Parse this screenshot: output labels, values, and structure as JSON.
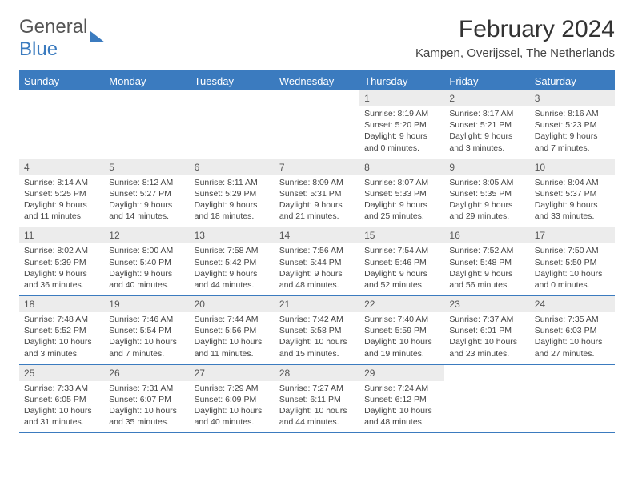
{
  "logo": {
    "word1": "General",
    "word2": "Blue"
  },
  "title": "February 2024",
  "location": "Kampen, Overijssel, The Netherlands",
  "dayHeaders": [
    "Sunday",
    "Monday",
    "Tuesday",
    "Wednesday",
    "Thursday",
    "Friday",
    "Saturday"
  ],
  "colors": {
    "accent": "#3b7bbf",
    "daynum_bg": "#ececec",
    "text": "#333333",
    "subtext": "#444444"
  },
  "typography": {
    "title_fontsize": 30,
    "location_fontsize": 15,
    "header_fontsize": 13,
    "body_fontsize": 10.5
  },
  "weeks": [
    [
      {
        "n": "",
        "sr": "",
        "ss": "",
        "dl": ""
      },
      {
        "n": "",
        "sr": "",
        "ss": "",
        "dl": ""
      },
      {
        "n": "",
        "sr": "",
        "ss": "",
        "dl": ""
      },
      {
        "n": "",
        "sr": "",
        "ss": "",
        "dl": ""
      },
      {
        "n": "1",
        "sr": "Sunrise: 8:19 AM",
        "ss": "Sunset: 5:20 PM",
        "dl": "Daylight: 9 hours and 0 minutes."
      },
      {
        "n": "2",
        "sr": "Sunrise: 8:17 AM",
        "ss": "Sunset: 5:21 PM",
        "dl": "Daylight: 9 hours and 3 minutes."
      },
      {
        "n": "3",
        "sr": "Sunrise: 8:16 AM",
        "ss": "Sunset: 5:23 PM",
        "dl": "Daylight: 9 hours and 7 minutes."
      }
    ],
    [
      {
        "n": "4",
        "sr": "Sunrise: 8:14 AM",
        "ss": "Sunset: 5:25 PM",
        "dl": "Daylight: 9 hours and 11 minutes."
      },
      {
        "n": "5",
        "sr": "Sunrise: 8:12 AM",
        "ss": "Sunset: 5:27 PM",
        "dl": "Daylight: 9 hours and 14 minutes."
      },
      {
        "n": "6",
        "sr": "Sunrise: 8:11 AM",
        "ss": "Sunset: 5:29 PM",
        "dl": "Daylight: 9 hours and 18 minutes."
      },
      {
        "n": "7",
        "sr": "Sunrise: 8:09 AM",
        "ss": "Sunset: 5:31 PM",
        "dl": "Daylight: 9 hours and 21 minutes."
      },
      {
        "n": "8",
        "sr": "Sunrise: 8:07 AM",
        "ss": "Sunset: 5:33 PM",
        "dl": "Daylight: 9 hours and 25 minutes."
      },
      {
        "n": "9",
        "sr": "Sunrise: 8:05 AM",
        "ss": "Sunset: 5:35 PM",
        "dl": "Daylight: 9 hours and 29 minutes."
      },
      {
        "n": "10",
        "sr": "Sunrise: 8:04 AM",
        "ss": "Sunset: 5:37 PM",
        "dl": "Daylight: 9 hours and 33 minutes."
      }
    ],
    [
      {
        "n": "11",
        "sr": "Sunrise: 8:02 AM",
        "ss": "Sunset: 5:39 PM",
        "dl": "Daylight: 9 hours and 36 minutes."
      },
      {
        "n": "12",
        "sr": "Sunrise: 8:00 AM",
        "ss": "Sunset: 5:40 PM",
        "dl": "Daylight: 9 hours and 40 minutes."
      },
      {
        "n": "13",
        "sr": "Sunrise: 7:58 AM",
        "ss": "Sunset: 5:42 PM",
        "dl": "Daylight: 9 hours and 44 minutes."
      },
      {
        "n": "14",
        "sr": "Sunrise: 7:56 AM",
        "ss": "Sunset: 5:44 PM",
        "dl": "Daylight: 9 hours and 48 minutes."
      },
      {
        "n": "15",
        "sr": "Sunrise: 7:54 AM",
        "ss": "Sunset: 5:46 PM",
        "dl": "Daylight: 9 hours and 52 minutes."
      },
      {
        "n": "16",
        "sr": "Sunrise: 7:52 AM",
        "ss": "Sunset: 5:48 PM",
        "dl": "Daylight: 9 hours and 56 minutes."
      },
      {
        "n": "17",
        "sr": "Sunrise: 7:50 AM",
        "ss": "Sunset: 5:50 PM",
        "dl": "Daylight: 10 hours and 0 minutes."
      }
    ],
    [
      {
        "n": "18",
        "sr": "Sunrise: 7:48 AM",
        "ss": "Sunset: 5:52 PM",
        "dl": "Daylight: 10 hours and 3 minutes."
      },
      {
        "n": "19",
        "sr": "Sunrise: 7:46 AM",
        "ss": "Sunset: 5:54 PM",
        "dl": "Daylight: 10 hours and 7 minutes."
      },
      {
        "n": "20",
        "sr": "Sunrise: 7:44 AM",
        "ss": "Sunset: 5:56 PM",
        "dl": "Daylight: 10 hours and 11 minutes."
      },
      {
        "n": "21",
        "sr": "Sunrise: 7:42 AM",
        "ss": "Sunset: 5:58 PM",
        "dl": "Daylight: 10 hours and 15 minutes."
      },
      {
        "n": "22",
        "sr": "Sunrise: 7:40 AM",
        "ss": "Sunset: 5:59 PM",
        "dl": "Daylight: 10 hours and 19 minutes."
      },
      {
        "n": "23",
        "sr": "Sunrise: 7:37 AM",
        "ss": "Sunset: 6:01 PM",
        "dl": "Daylight: 10 hours and 23 minutes."
      },
      {
        "n": "24",
        "sr": "Sunrise: 7:35 AM",
        "ss": "Sunset: 6:03 PM",
        "dl": "Daylight: 10 hours and 27 minutes."
      }
    ],
    [
      {
        "n": "25",
        "sr": "Sunrise: 7:33 AM",
        "ss": "Sunset: 6:05 PM",
        "dl": "Daylight: 10 hours and 31 minutes."
      },
      {
        "n": "26",
        "sr": "Sunrise: 7:31 AM",
        "ss": "Sunset: 6:07 PM",
        "dl": "Daylight: 10 hours and 35 minutes."
      },
      {
        "n": "27",
        "sr": "Sunrise: 7:29 AM",
        "ss": "Sunset: 6:09 PM",
        "dl": "Daylight: 10 hours and 40 minutes."
      },
      {
        "n": "28",
        "sr": "Sunrise: 7:27 AM",
        "ss": "Sunset: 6:11 PM",
        "dl": "Daylight: 10 hours and 44 minutes."
      },
      {
        "n": "29",
        "sr": "Sunrise: 7:24 AM",
        "ss": "Sunset: 6:12 PM",
        "dl": "Daylight: 10 hours and 48 minutes."
      },
      {
        "n": "",
        "sr": "",
        "ss": "",
        "dl": ""
      },
      {
        "n": "",
        "sr": "",
        "ss": "",
        "dl": ""
      }
    ]
  ]
}
